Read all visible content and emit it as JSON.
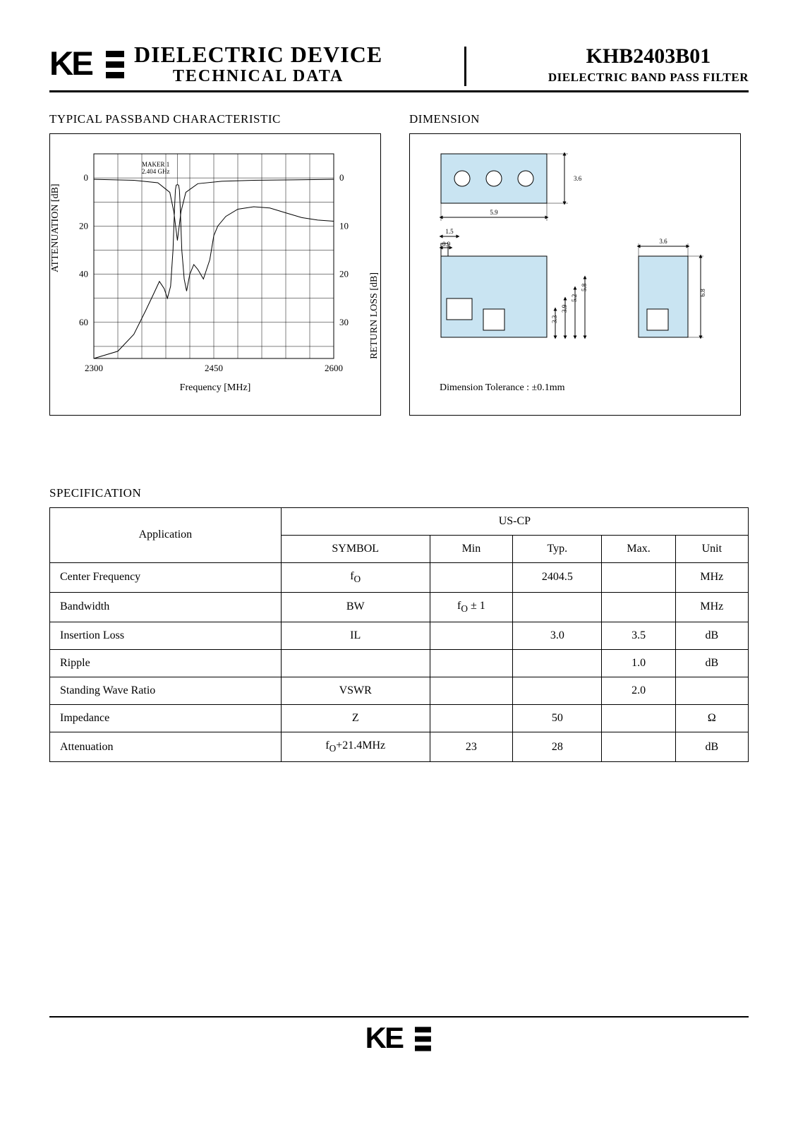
{
  "header": {
    "logo_text": "KEC",
    "title_main": "DIELECTRIC DEVICE",
    "title_sub": "TECHNICAL DATA",
    "part_number": "KHB2403B01",
    "subtitle": "DIELECTRIC BAND PASS FILTER"
  },
  "sections": {
    "chart_title": "TYPICAL PASSBAND CHARACTERISTIC",
    "dimension_title": "DIMENSION",
    "spec_title": "SPECIFICATION"
  },
  "chart": {
    "type": "line",
    "marker_label_1": "MAKER 1",
    "marker_label_2": "2.404 GHz",
    "x": {
      "label": "Frequency [MHz]",
      "min": 2300,
      "max": 2600,
      "ticks": [
        2300,
        2450,
        2600
      ],
      "minor_step": 30
    },
    "y_left": {
      "label": "ATTENUATION [dB]",
      "min_disp": -10,
      "max_disp": 75,
      "ticks": [
        0,
        20,
        40,
        60
      ],
      "minor_step": 10
    },
    "y_right": {
      "label": "RETURN LOSS [dB]",
      "ticks": [
        0,
        10,
        20,
        30
      ]
    },
    "series": {
      "attenuation": {
        "color": "#000000",
        "points": [
          [
            2300,
            75
          ],
          [
            2330,
            72
          ],
          [
            2350,
            65
          ],
          [
            2365,
            55
          ],
          [
            2375,
            48
          ],
          [
            2382,
            43
          ],
          [
            2388,
            46
          ],
          [
            2392,
            50
          ],
          [
            2396,
            45
          ],
          [
            2399,
            30
          ],
          [
            2401,
            12
          ],
          [
            2402,
            5
          ],
          [
            2403,
            3
          ],
          [
            2404.5,
            2.8
          ],
          [
            2406,
            3
          ],
          [
            2407,
            5
          ],
          [
            2408,
            12
          ],
          [
            2410,
            30
          ],
          [
            2413,
            42
          ],
          [
            2416,
            47
          ],
          [
            2420,
            40
          ],
          [
            2425,
            36
          ],
          [
            2430,
            38
          ],
          [
            2437,
            42
          ],
          [
            2445,
            34
          ],
          [
            2450,
            24
          ],
          [
            2455,
            20
          ],
          [
            2465,
            16
          ],
          [
            2480,
            13
          ],
          [
            2500,
            12
          ],
          [
            2520,
            12.5
          ],
          [
            2540,
            14.5
          ],
          [
            2560,
            16.5
          ],
          [
            2580,
            17.5
          ],
          [
            2600,
            18
          ]
        ]
      },
      "return_loss": {
        "color": "#000000",
        "points": [
          [
            2300,
            0.3
          ],
          [
            2350,
            0.5
          ],
          [
            2380,
            1.0
          ],
          [
            2395,
            3
          ],
          [
            2400,
            7
          ],
          [
            2403,
            11
          ],
          [
            2404.5,
            13
          ],
          [
            2406,
            11
          ],
          [
            2409,
            7
          ],
          [
            2415,
            3
          ],
          [
            2430,
            1.2
          ],
          [
            2460,
            0.7
          ],
          [
            2500,
            0.5
          ],
          [
            2550,
            0.4
          ],
          [
            2600,
            0.3
          ]
        ]
      }
    },
    "grid_color": "#000000",
    "frame_color": "#000000",
    "line_width": 1,
    "background": "#ffffff"
  },
  "dimension": {
    "tolerance_note": "Dimension Tolerance : ±0.1mm",
    "top_view": {
      "fill": "#c9e4f2",
      "width": 5.9,
      "height": 3.6,
      "holes": 3,
      "label_h": "3.6",
      "label_w": "5.9"
    },
    "side_view_main": {
      "fill": "#c9e4f2",
      "labels": {
        "a": "1.5",
        "b": "0.9",
        "c": "3.3",
        "d": "3.9",
        "e": "5.2",
        "f": "5.8"
      }
    },
    "side_view_right": {
      "fill": "#c9e4f2",
      "label_w": "3.6",
      "label_h": "6.8"
    },
    "dim_font_size": 9,
    "line_color": "#000000"
  },
  "spec_table": {
    "columns": [
      "Application",
      "SYMBOL",
      "Min",
      "Typ.",
      "Max.",
      "Unit"
    ],
    "application_header": "Application",
    "application_group": "US-CP",
    "rows": [
      {
        "param": "Center Frequency",
        "symbol": "f_O",
        "min": "",
        "typ": "2404.5",
        "max": "",
        "unit": "MHz"
      },
      {
        "param": "Bandwidth",
        "symbol": "BW",
        "min": "f_O ± 1",
        "typ": "",
        "max": "",
        "unit": "MHz"
      },
      {
        "param": "Insertion Loss",
        "symbol": "IL",
        "min": "",
        "typ": "3.0",
        "max": "3.5",
        "unit": "dB"
      },
      {
        "param": "Ripple",
        "symbol": "",
        "min": "",
        "typ": "",
        "max": "1.0",
        "unit": "dB"
      },
      {
        "param": "Standing Wave Ratio",
        "symbol": "VSWR",
        "min": "",
        "typ": "",
        "max": "2.0",
        "unit": ""
      },
      {
        "param": "Impedance",
        "symbol": "Z",
        "min": "",
        "typ": "50",
        "max": "",
        "unit": "Ω"
      },
      {
        "param": "Attenuation",
        "symbol": "f_O+21.4MHz",
        "min": "23",
        "typ": "28",
        "max": "",
        "unit": "dB"
      }
    ]
  },
  "footer": {
    "logo_text": "KEC"
  }
}
